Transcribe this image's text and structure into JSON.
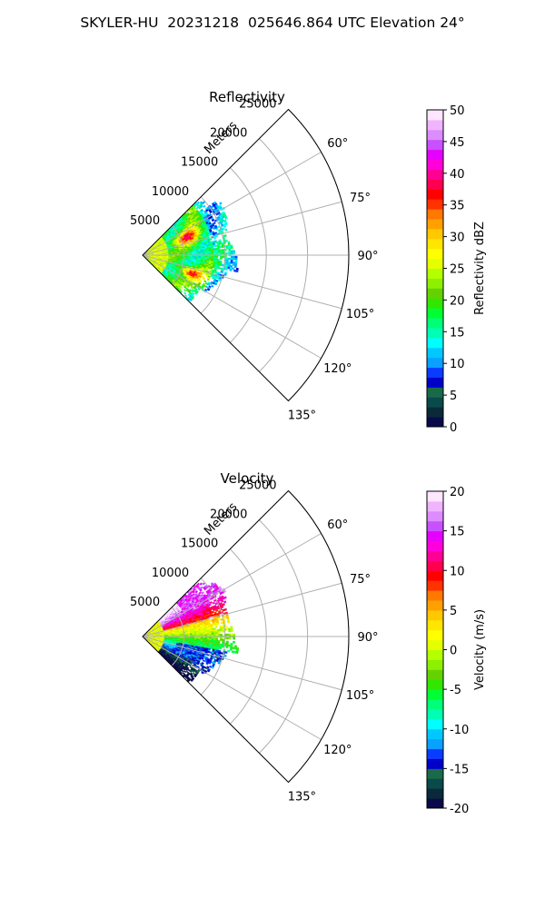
{
  "figure": {
    "title": "SKYLER-HU  20231218  025646.864 UTC Elevation 24°"
  },
  "chart_data": [
    {
      "type": "polar-sector",
      "title": "Reflectivity",
      "radial_label": "Meters",
      "radial_ticks": [
        5000,
        10000,
        15000,
        20000,
        25000
      ],
      "r_max": 25000,
      "angular_range": [
        45,
        135
      ],
      "angular_ticks": [
        60,
        75,
        90,
        105,
        120,
        135
      ],
      "angular_tick_labels": [
        "60°",
        "75°",
        "90°",
        "105°",
        "120°",
        "135°"
      ],
      "grid": true,
      "colorbar": {
        "label": "Reflectivity dBZ",
        "range": [
          0,
          50
        ],
        "ticks": [
          0,
          5,
          10,
          15,
          20,
          25,
          30,
          35,
          40,
          45,
          50
        ],
        "colors": [
          "#0a0a4a",
          "#0a2a3a",
          "#0a4a4a",
          "#1a6a4a",
          "#0000c8",
          "#0a3cff",
          "#0aa0ff",
          "#00c8ff",
          "#00ffff",
          "#00ffb4",
          "#00ff78",
          "#00ff32",
          "#32e600",
          "#64d200",
          "#8cf000",
          "#b4ff00",
          "#e6ff00",
          "#ffff00",
          "#ffe600",
          "#ffc800",
          "#ffa000",
          "#ff7800",
          "#ff3200",
          "#ff0000",
          "#ff0050",
          "#ff0096",
          "#ff00dc",
          "#e600ff",
          "#c850ff",
          "#dc8cff",
          "#f0b4ff",
          "#ffe6ff"
        ]
      },
      "echo_summary": "Echoes within ~11000 m; strongest (30–40 dBZ) near 5000–7000 m on 60°–75° and 105°–120° rays; 15–25 dBZ elsewhere"
    },
    {
      "type": "polar-sector",
      "title": "Velocity",
      "radial_label": "Meters",
      "radial_ticks": [
        5000,
        10000,
        15000,
        20000,
        25000
      ],
      "r_max": 25000,
      "angular_range": [
        45,
        135
      ],
      "angular_ticks": [
        60,
        75,
        90,
        105,
        120,
        135
      ],
      "angular_tick_labels": [
        "60°",
        "75°",
        "90°",
        "105°",
        "120°",
        "135°"
      ],
      "grid": true,
      "colorbar": {
        "label": "Velocity (m/s)",
        "range": [
          -20,
          20
        ],
        "ticks": [
          -20,
          -15,
          -10,
          -5,
          0,
          5,
          10,
          15,
          20
        ],
        "colors": [
          "#0a0a4a",
          "#0a2a3a",
          "#0a4a4a",
          "#1a6a4a",
          "#0000c8",
          "#0a3cff",
          "#0aa0ff",
          "#00c8ff",
          "#00ffff",
          "#00ffb4",
          "#00ff78",
          "#00ff32",
          "#32e600",
          "#64d200",
          "#8cf000",
          "#b4ff00",
          "#e6ff00",
          "#ffff00",
          "#ffe600",
          "#ffc800",
          "#ffa000",
          "#ff7800",
          "#ff3200",
          "#ff0000",
          "#ff0050",
          "#ff0096",
          "#ff00dc",
          "#e600ff",
          "#c850ff",
          "#dc8cff",
          "#f0b4ff",
          "#ffe6ff"
        ]
      },
      "echo_summary": "Near-zero (yellow) velocities on 75°–90°; +10 to +15 m/s (red to magenta) on 60°–75°; −5 to −12 m/s (green to cyan) on 100°–120°"
    }
  ]
}
